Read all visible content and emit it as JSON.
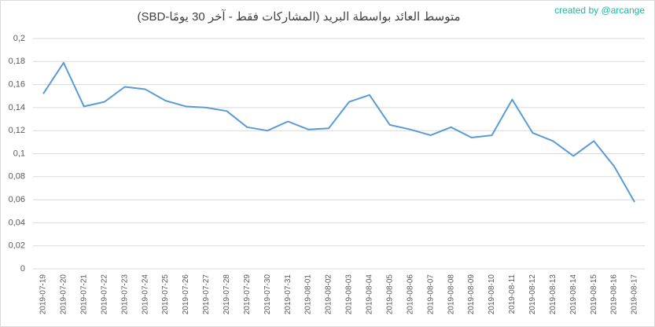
{
  "chart_data": {
    "type": "line",
    "title": "متوسط العائد بواسطة البريد (المشاركات فقط - آخر 30 يومًا-SBD)",
    "annotation": "created by @arcange",
    "x": [
      "2019-07-19",
      "2019-07-20",
      "2019-07-21",
      "2019-07-22",
      "2019-07-23",
      "2019-07-24",
      "2019-07-25",
      "2019-07-26",
      "2019-07-27",
      "2019-07-28",
      "2019-07-29",
      "2019-07-30",
      "2019-07-31",
      "2019-08-01",
      "2019-08-02",
      "2019-08-03",
      "2019-08-04",
      "2019-08-05",
      "2019-08-06",
      "2019-08-07",
      "2019-08-08",
      "2019-08-09",
      "2019-08-10",
      "2019-08-11",
      "2019-08-12",
      "2019-08-13",
      "2019-08-14",
      "2019-08-15",
      "2019-08-16",
      "2019-08-17"
    ],
    "values": [
      0.152,
      0.179,
      0.141,
      0.145,
      0.158,
      0.156,
      0.146,
      0.141,
      0.14,
      0.137,
      0.123,
      0.12,
      0.128,
      0.121,
      0.122,
      0.145,
      0.151,
      0.125,
      0.121,
      0.116,
      0.123,
      0.114,
      0.116,
      0.147,
      0.118,
      0.111,
      0.098,
      0.111,
      0.089,
      0.058
    ],
    "color": "#5b9bd5",
    "ylim": [
      0,
      0.2
    ],
    "yticks": [
      0,
      {
        "value": 0.02,
        "label": "0,02"
      },
      {
        "value": 0.04,
        "label": "0,04"
      },
      {
        "value": 0.06,
        "label": "0,06"
      },
      {
        "value": 0.08,
        "label": "0,08"
      },
      {
        "value": 0.1,
        "label": "0,1"
      },
      {
        "value": 0.12,
        "label": "0,12"
      },
      {
        "value": 0.14,
        "label": "0,14"
      },
      {
        "value": 0.16,
        "label": "0,16"
      },
      {
        "value": 0.18,
        "label": "0,18"
      },
      {
        "value": 0.2,
        "label": "0,2"
      }
    ],
    "grid": true
  }
}
